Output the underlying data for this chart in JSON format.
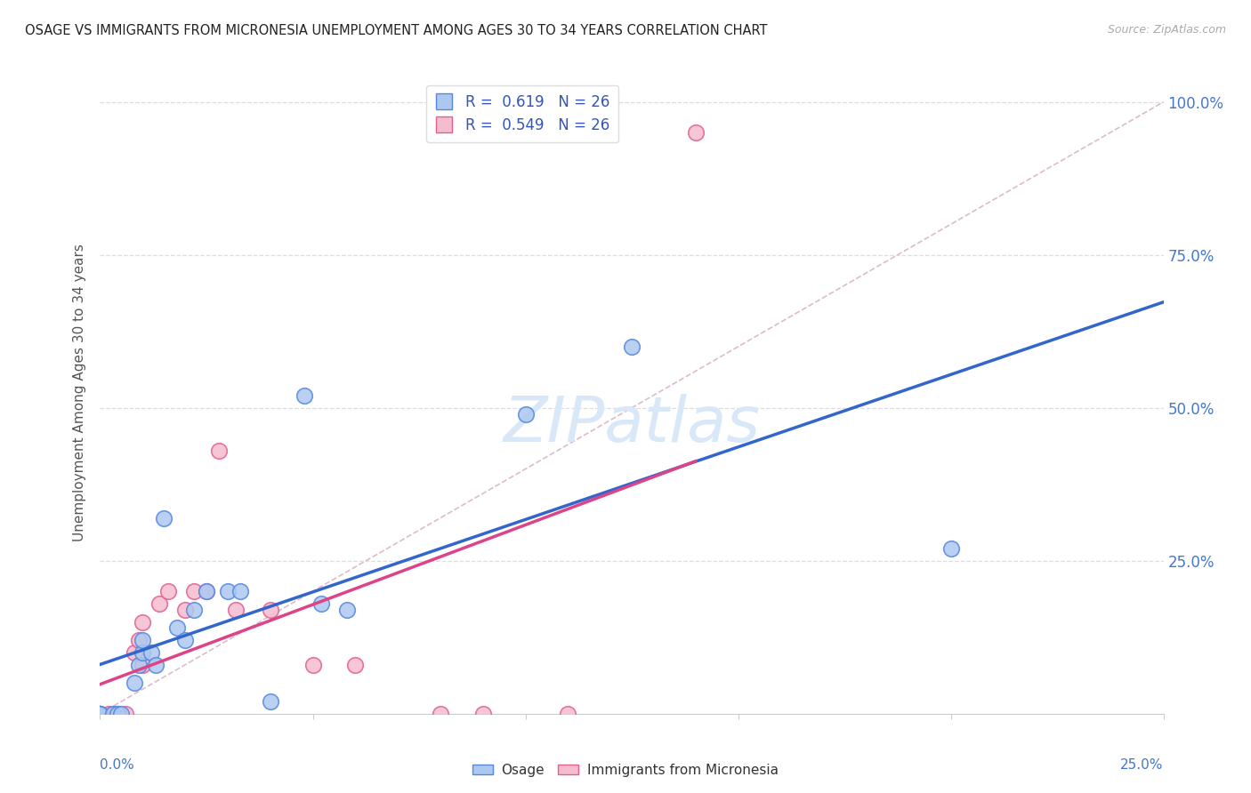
{
  "title": "OSAGE VS IMMIGRANTS FROM MICRONESIA UNEMPLOYMENT AMONG AGES 30 TO 34 YEARS CORRELATION CHART",
  "source": "Source: ZipAtlas.com",
  "ylabel": "Unemployment Among Ages 30 to 34 years",
  "xlim": [
    0.0,
    0.25
  ],
  "ylim": [
    0.0,
    1.05
  ],
  "yticks": [
    0.0,
    0.25,
    0.5,
    0.75,
    1.0
  ],
  "ytick_labels": [
    "",
    "25.0%",
    "50.0%",
    "75.0%",
    "100.0%"
  ],
  "legend_label1": "Osage",
  "legend_label2": "Immigrants from Micronesia",
  "color_osage_fill": "#adc8f0",
  "color_osage_edge": "#5588dd",
  "color_micro_fill": "#f5bcd0",
  "color_micro_edge": "#e06090",
  "color_line_osage": "#3366cc",
  "color_line_micronesia": "#dd4488",
  "color_diagonal": "#ddbbcc",
  "background_color": "#ffffff",
  "grid_color": "#dddddd",
  "osage_x": [
    0.0,
    0.0,
    0.0,
    0.003,
    0.004,
    0.005,
    0.008,
    0.009,
    0.01,
    0.01,
    0.012,
    0.013,
    0.015,
    0.018,
    0.02,
    0.022,
    0.025,
    0.03,
    0.033,
    0.04,
    0.048,
    0.052,
    0.058,
    0.1,
    0.125,
    0.2
  ],
  "osage_y": [
    0.0,
    0.0,
    0.0,
    0.0,
    0.0,
    0.0,
    0.05,
    0.08,
    0.1,
    0.12,
    0.1,
    0.08,
    0.32,
    0.14,
    0.12,
    0.17,
    0.2,
    0.2,
    0.2,
    0.02,
    0.52,
    0.18,
    0.17,
    0.49,
    0.6,
    0.27
  ],
  "micronesia_x": [
    0.0,
    0.0,
    0.0,
    0.0,
    0.002,
    0.003,
    0.004,
    0.006,
    0.008,
    0.009,
    0.01,
    0.01,
    0.014,
    0.016,
    0.02,
    0.022,
    0.025,
    0.028,
    0.032,
    0.04,
    0.05,
    0.06,
    0.08,
    0.09,
    0.11,
    0.14
  ],
  "micronesia_y": [
    0.0,
    0.0,
    0.0,
    0.0,
    0.0,
    0.0,
    0.0,
    0.0,
    0.1,
    0.12,
    0.08,
    0.15,
    0.18,
    0.2,
    0.17,
    0.2,
    0.2,
    0.43,
    0.17,
    0.17,
    0.08,
    0.08,
    0.0,
    0.0,
    0.0,
    0.95
  ],
  "watermark": "ZIPatlas",
  "watermark_color": "#d8e8f8"
}
